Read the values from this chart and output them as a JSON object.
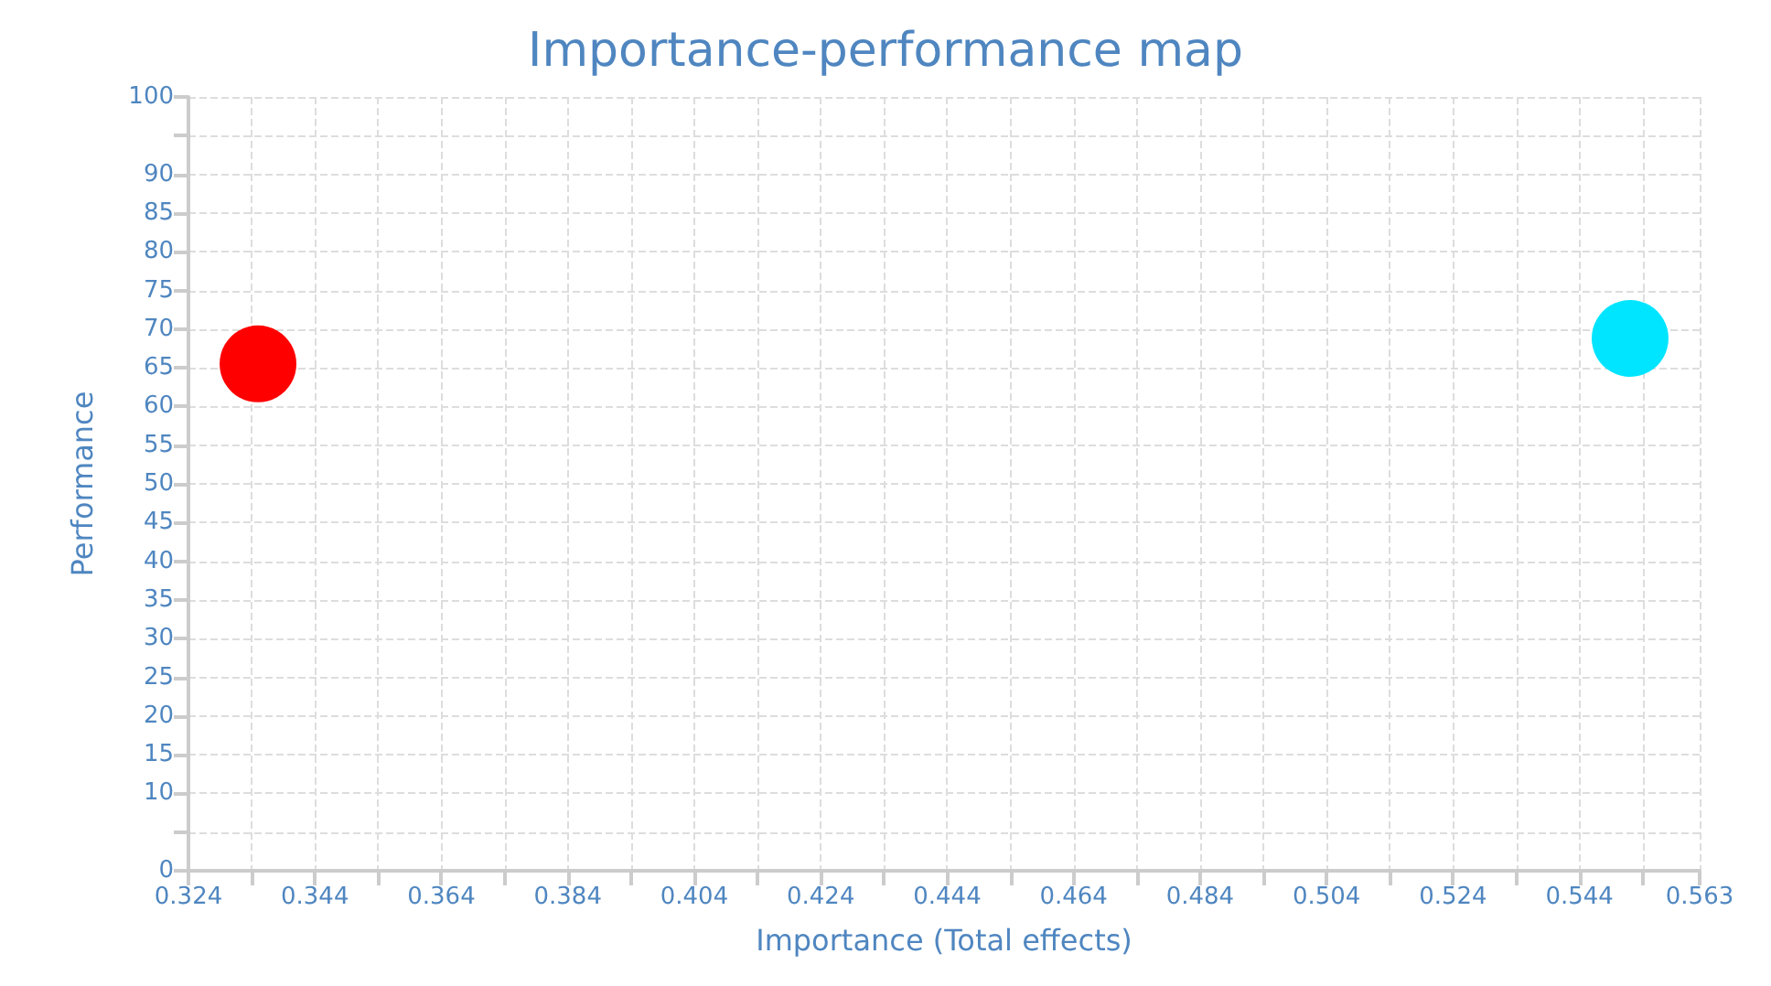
{
  "chart_data": {
    "type": "scatter",
    "title": "Importance-performance map",
    "xlabel": "Importance (Total effects)",
    "ylabel": "Performance",
    "series": [
      {
        "color": "#ff0000",
        "x": [
          0.335
        ],
        "values": [
          65.5
        ]
      },
      {
        "color": "#00e5ff",
        "x": [
          0.552
        ],
        "values": [
          68.8
        ]
      }
    ],
    "xlim": [
      0.324,
      0.563
    ],
    "xticks": [
      0.324,
      {
        "value": 0.334,
        "label": null
      },
      0.344,
      {
        "value": 0.354,
        "label": null
      },
      0.364,
      {
        "value": 0.374,
        "label": null
      },
      0.384,
      {
        "value": 0.394,
        "label": null
      },
      0.404,
      {
        "value": 0.414,
        "label": null
      },
      0.424,
      {
        "value": 0.434,
        "label": null
      },
      0.444,
      {
        "value": 0.454,
        "label": null
      },
      0.464,
      {
        "value": 0.474,
        "label": null
      },
      0.484,
      {
        "value": 0.494,
        "label": null
      },
      0.504,
      {
        "value": 0.514,
        "label": null
      },
      0.524,
      {
        "value": 0.534,
        "label": null
      },
      0.544,
      {
        "value": 0.554,
        "label": null
      },
      0.563
    ],
    "ylim": [
      0,
      100
    ],
    "yticks": [
      0,
      {
        "value": 5,
        "label": null
      },
      10,
      15,
      20,
      25,
      30,
      35,
      40,
      45,
      50,
      55,
      60,
      65,
      70,
      75,
      80,
      85,
      90,
      {
        "value": 95,
        "label": null
      },
      100
    ],
    "grid": true,
    "marker": "circle"
  }
}
